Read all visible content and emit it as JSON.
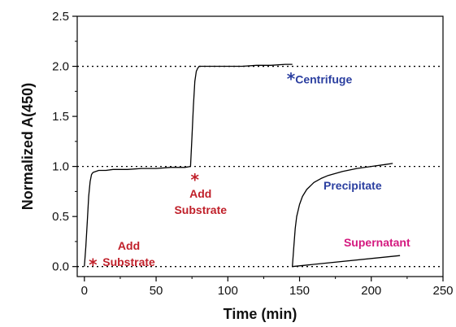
{
  "chart_data": {
    "type": "line",
    "xlabel": "Time (min)",
    "ylabel": "Normalized A(450)",
    "xlim": [
      -5,
      250
    ],
    "ylim": [
      -0.1,
      2.5
    ],
    "xticks": [
      0,
      50,
      100,
      150,
      200,
      250
    ],
    "xtick_labels": [
      "0",
      "50",
      "100",
      "150",
      "200",
      "250"
    ],
    "yticks": [
      0.0,
      0.5,
      1.0,
      1.5,
      2.0,
      2.5
    ],
    "ytick_labels": [
      "0.0",
      "0.5",
      "1.0",
      "1.5",
      "2.0",
      "2.5"
    ],
    "reference_lines": [
      0.0,
      1.0,
      2.0
    ],
    "grid": false,
    "legend": "none",
    "series": [
      {
        "color": "#000000",
        "x": [
          0,
          1,
          2,
          3,
          4,
          5,
          6,
          8,
          10,
          15,
          20,
          30,
          40,
          50,
          60,
          70,
          74,
          75,
          76,
          77,
          78,
          79,
          80,
          85,
          90,
          100,
          110,
          120,
          130,
          140,
          145
        ],
        "y": [
          0.0,
          0.2,
          0.45,
          0.7,
          0.85,
          0.92,
          0.94,
          0.95,
          0.96,
          0.96,
          0.97,
          0.97,
          0.98,
          0.98,
          0.99,
          0.99,
          1.0,
          1.3,
          1.6,
          1.85,
          1.95,
          1.98,
          2.0,
          2.0,
          2.0,
          2.0,
          2.0,
          2.01,
          2.01,
          2.02,
          2.02
        ]
      },
      {
        "color": "#000000",
        "x": [
          145,
          146,
          147,
          148,
          150,
          152,
          155,
          160,
          165,
          170,
          180,
          190,
          200,
          210,
          215
        ],
        "y": [
          0.0,
          0.2,
          0.38,
          0.5,
          0.62,
          0.7,
          0.77,
          0.84,
          0.88,
          0.91,
          0.95,
          0.98,
          1.0,
          1.02,
          1.03
        ]
      },
      {
        "color": "#000000",
        "x": [
          145,
          220
        ],
        "y": [
          0.0,
          0.11
        ]
      }
    ],
    "annotations": [
      {
        "id": "add1",
        "lines": [
          "Add",
          "Substrate"
        ],
        "x": 31,
        "y": 0.17,
        "anchor": "middle",
        "color": "#c0202a"
      },
      {
        "id": "add2",
        "lines": [
          "Add",
          "Substrate"
        ],
        "x": 81,
        "y": 0.69,
        "anchor": "middle",
        "color": "#c0202a"
      },
      {
        "id": "centrifuge",
        "lines": [
          "Centrifuge"
        ],
        "x": 147,
        "y": 1.83,
        "anchor": "start",
        "color": "#2b3fa0"
      },
      {
        "id": "precipitate",
        "lines": [
          "Precipitate"
        ],
        "x": 187,
        "y": 0.77,
        "anchor": "middle",
        "color": "#2b3fa0"
      },
      {
        "id": "supernatant",
        "lines": [
          "Supernatant"
        ],
        "x": 204,
        "y": 0.2,
        "anchor": "middle",
        "color": "#d4197f"
      }
    ],
    "markers": [
      {
        "id": "star-add1",
        "symbol": "*",
        "x": 6,
        "y": 0.0,
        "color": "#c0202a"
      },
      {
        "id": "star-add2",
        "symbol": "*",
        "x": 77,
        "y": 0.85,
        "color": "#c0202a"
      },
      {
        "id": "star-centrifuge",
        "symbol": "*",
        "x": 144,
        "y": 1.86,
        "color": "#2b3fa0"
      }
    ]
  }
}
